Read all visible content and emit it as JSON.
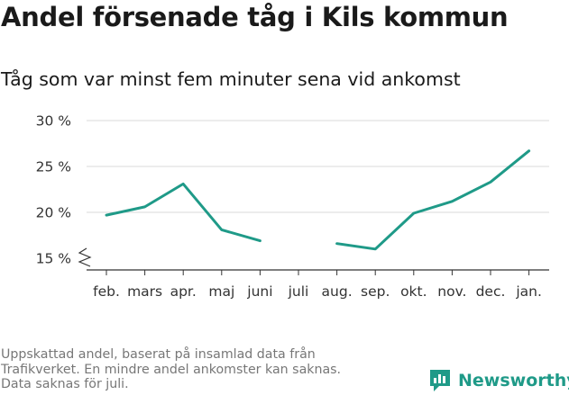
{
  "title": "Andel försenade tåg i Kils kommun",
  "subtitle": "Tåg som var minst fem minuter sena vid ankomst",
  "footnote": [
    "Uppskattad andel, baserat på insamlad data från",
    "Trafikverket. En mindre andel ankomster kan saknas.",
    "Data saknas för juli."
  ],
  "brand": {
    "name": "Newsworthy",
    "icon": "newsworthy-logo-icon",
    "color": "#1f9a88"
  },
  "chart_data": {
    "type": "line",
    "title": "Andel försenade tåg i Kils kommun",
    "subtitle": "Tåg som var minst fem minuter sena vid ankomst",
    "xlabel": "",
    "ylabel": "",
    "categories": [
      "feb.",
      "mars",
      "apr.",
      "maj",
      "juni",
      "juli",
      "aug.",
      "sep.",
      "okt.",
      "nov.",
      "dec.",
      "jan."
    ],
    "series": [
      {
        "values": [
          19.7,
          20.6,
          23.1,
          18.1,
          16.9,
          null,
          16.6,
          16.0,
          19.9,
          21.2,
          23.3,
          26.7
        ],
        "color": "#1f9a88"
      }
    ],
    "yticks": [
      15,
      20,
      25,
      30
    ],
    "ytick_labels": [
      "15 %",
      "20 %",
      "25 %",
      "30 %"
    ],
    "ylim": [
      15,
      30
    ],
    "axis_break": true,
    "grid": true,
    "legend": "none"
  }
}
